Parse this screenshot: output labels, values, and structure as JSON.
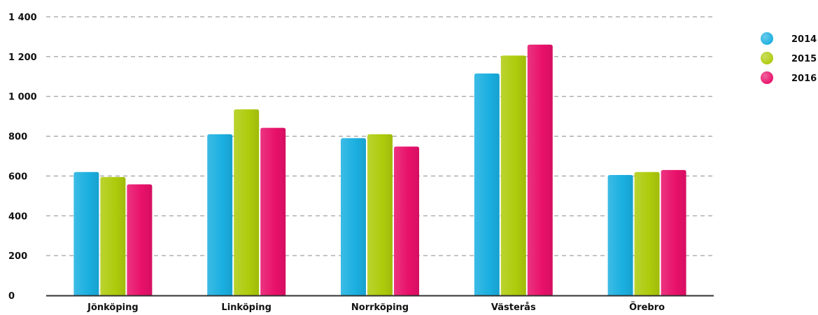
{
  "chart_data": {
    "type": "bar",
    "categories": [
      "Jönköping",
      "Linköping",
      "Norrköping",
      "Västerås",
      "Örebro"
    ],
    "series": [
      {
        "name": "2014",
        "color": "#1aafe0",
        "values": [
          620,
          810,
          790,
          1115,
          605
        ]
      },
      {
        "name": "2015",
        "color": "#aecb0c",
        "values": [
          595,
          935,
          810,
          1205,
          620
        ]
      },
      {
        "name": "2016",
        "color": "#e8106a",
        "values": [
          558,
          842,
          748,
          1260,
          630
        ]
      }
    ],
    "yticks": [
      "0",
      "200",
      "400",
      "600",
      "800",
      "1 000",
      "1 200",
      "1 400"
    ],
    "ylim": [
      0,
      1400
    ],
    "grid": true,
    "legend": "top-right"
  }
}
